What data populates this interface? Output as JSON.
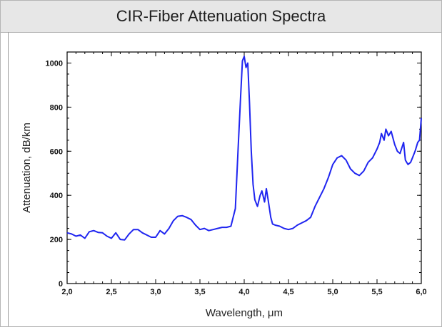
{
  "window": {
    "title": "CIR-Fiber Attenuation Spectra"
  },
  "colors": {
    "line": "#1f25f0",
    "header_bg": "#e7e7e7",
    "frame": "#000000"
  },
  "chart_data": {
    "type": "line",
    "title": "CIR-Fiber Attenuation Spectra",
    "xlabel": "Wavelength, μm",
    "ylabel": "Attenuation, dB/km",
    "xlim": [
      2.0,
      6.0
    ],
    "ylim": [
      0,
      1050
    ],
    "grid": false,
    "x_ticks": [
      "2,0",
      "2,5",
      "3,0",
      "3,5",
      "4,0",
      "4,5",
      "5,0",
      "5,5",
      "6,0"
    ],
    "y_ticks": [
      "0",
      "200",
      "400",
      "600",
      "800",
      "1000"
    ],
    "series": [
      {
        "x": [
          2.0,
          2.05,
          2.1,
          2.15,
          2.2,
          2.25,
          2.3,
          2.35,
          2.4,
          2.45,
          2.5,
          2.55,
          2.6,
          2.65,
          2.7,
          2.75,
          2.8,
          2.85,
          2.9,
          2.95,
          3.0,
          3.05,
          3.1,
          3.15,
          3.2,
          3.25,
          3.3,
          3.35,
          3.4,
          3.45,
          3.5,
          3.55,
          3.6,
          3.65,
          3.7,
          3.75,
          3.8,
          3.85,
          3.9,
          3.93,
          3.96,
          3.98,
          4.0,
          4.02,
          4.04,
          4.06,
          4.08,
          4.1,
          4.12,
          4.15,
          4.18,
          4.2,
          4.23,
          4.25,
          4.27,
          4.3,
          4.32,
          4.35,
          4.4,
          4.45,
          4.5,
          4.55,
          4.6,
          4.65,
          4.7,
          4.75,
          4.8,
          4.85,
          4.9,
          4.95,
          5.0,
          5.05,
          5.1,
          5.15,
          5.2,
          5.25,
          5.3,
          5.35,
          5.4,
          5.45,
          5.5,
          5.53,
          5.55,
          5.58,
          5.6,
          5.63,
          5.66,
          5.7,
          5.73,
          5.76,
          5.8,
          5.82,
          5.85,
          5.88,
          5.9,
          5.93,
          5.96,
          5.98,
          6.0
        ],
        "y": [
          230,
          225,
          215,
          220,
          205,
          235,
          240,
          232,
          230,
          215,
          205,
          230,
          200,
          198,
          225,
          245,
          245,
          230,
          220,
          210,
          210,
          240,
          225,
          250,
          285,
          305,
          308,
          300,
          290,
          265,
          245,
          250,
          240,
          245,
          250,
          255,
          255,
          260,
          340,
          600,
          850,
          1010,
          1030,
          980,
          1000,
          820,
          600,
          450,
          380,
          350,
          400,
          420,
          370,
          430,
          380,
          300,
          270,
          265,
          260,
          250,
          245,
          250,
          265,
          275,
          285,
          300,
          350,
          390,
          430,
          480,
          540,
          570,
          580,
          560,
          520,
          500,
          490,
          510,
          550,
          570,
          610,
          640,
          680,
          650,
          700,
          670,
          690,
          630,
          600,
          590,
          640,
          560,
          540,
          550,
          570,
          600,
          640,
          650,
          750
        ]
      }
    ]
  }
}
